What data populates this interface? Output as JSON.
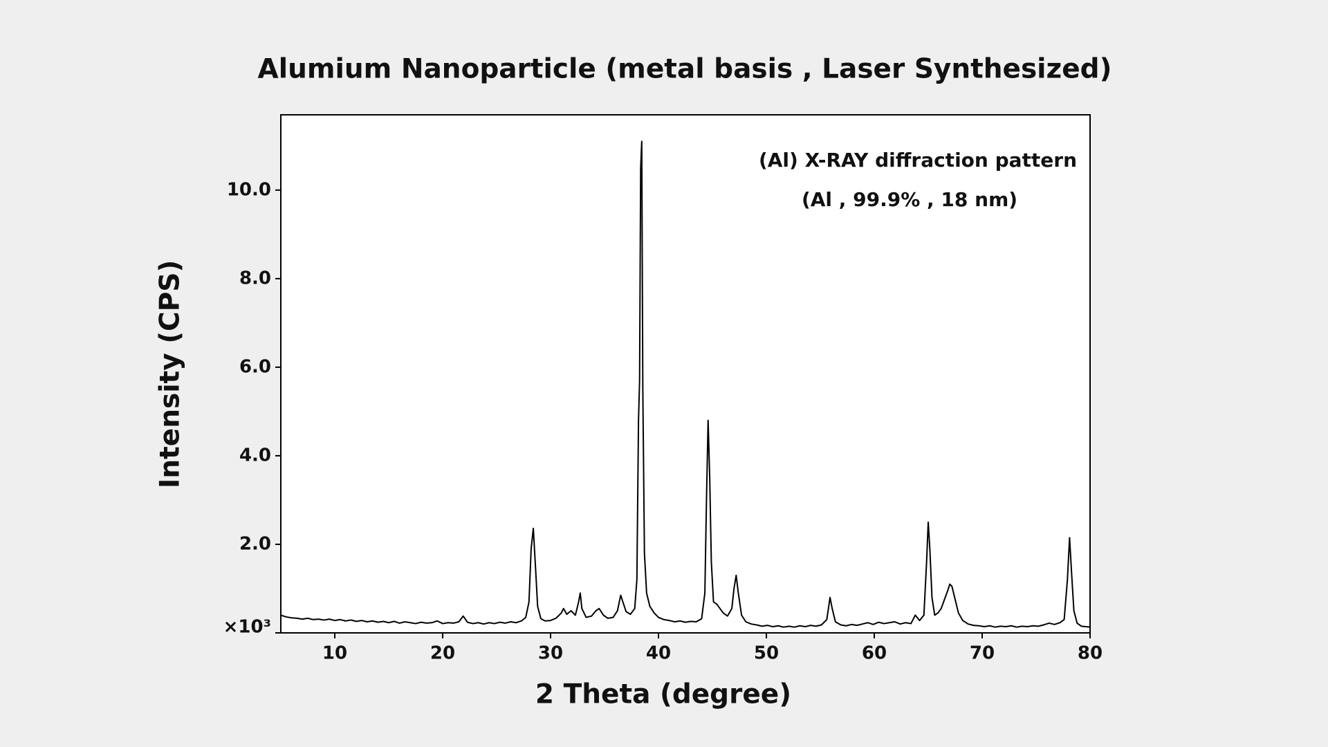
{
  "chart_data": {
    "type": "line",
    "title": "Alumium Nanoparticle (metal basis , Laser Synthesized)",
    "annotations": [
      "(Al) X-RAY diffraction pattern",
      "(Al , 99.9% , 18 nm)"
    ],
    "x_label": "2 Theta (degree)",
    "y_label": "Intensity (CPS)",
    "color": "#000000",
    "xlim": [
      5,
      80
    ],
    "ylim": [
      0,
      11.7
    ],
    "xticks": [
      10,
      20,
      30,
      40,
      50,
      60,
      70,
      80
    ],
    "yticks": [
      {
        "value": 0,
        "label": "×10³"
      },
      {
        "value": 2,
        "label": "2.0"
      },
      {
        "value": 4,
        "label": "4.0"
      },
      {
        "value": 6,
        "label": "6.0"
      },
      {
        "value": 8,
        "label": "8.0"
      },
      {
        "value": 10,
        "label": "10.0"
      }
    ],
    "x": [
      5.0,
      5.5,
      6.0,
      6.5,
      7.0,
      7.5,
      8.0,
      8.5,
      9.0,
      9.5,
      10.0,
      10.5,
      11.0,
      11.5,
      12.0,
      12.5,
      13.0,
      13.5,
      14.0,
      14.5,
      15.0,
      15.5,
      16.0,
      16.5,
      17.0,
      17.5,
      18.0,
      18.5,
      19.0,
      19.5,
      20.0,
      20.5,
      21.0,
      21.5,
      21.9,
      22.3,
      22.8,
      23.3,
      23.8,
      24.3,
      24.8,
      25.3,
      25.8,
      26.3,
      26.8,
      27.3,
      27.7,
      28.0,
      28.2,
      28.4,
      28.6,
      28.8,
      29.1,
      29.5,
      30.0,
      30.5,
      31.0,
      31.2,
      31.5,
      31.9,
      32.3,
      32.6,
      32.75,
      32.9,
      33.3,
      33.8,
      34.2,
      34.5,
      34.9,
      35.3,
      35.8,
      36.2,
      36.5,
      36.7,
      37.0,
      37.4,
      37.8,
      38.0,
      38.15,
      38.25,
      38.35,
      38.45,
      38.55,
      38.7,
      38.9,
      39.2,
      39.6,
      40.0,
      40.5,
      41.0,
      41.5,
      42.0,
      42.5,
      43.0,
      43.5,
      44.0,
      44.3,
      44.45,
      44.6,
      44.75,
      44.9,
      45.1,
      45.4,
      45.7,
      46.0,
      46.4,
      46.8,
      47.0,
      47.2,
      47.4,
      47.7,
      48.1,
      48.6,
      49.1,
      49.6,
      50.1,
      50.6,
      51.1,
      51.6,
      52.1,
      52.6,
      53.1,
      53.6,
      54.1,
      54.6,
      55.1,
      55.6,
      55.9,
      56.1,
      56.4,
      56.9,
      57.4,
      57.9,
      58.4,
      58.9,
      59.4,
      59.9,
      60.4,
      60.9,
      61.4,
      61.9,
      62.4,
      62.9,
      63.4,
      63.8,
      64.2,
      64.6,
      64.85,
      65.0,
      65.15,
      65.35,
      65.6,
      65.9,
      66.2,
      66.5,
      66.8,
      67.0,
      67.2,
      67.5,
      67.8,
      68.2,
      68.7,
      69.2,
      69.7,
      70.2,
      70.7,
      71.2,
      71.7,
      72.2,
      72.7,
      73.2,
      73.7,
      74.2,
      74.7,
      75.2,
      75.7,
      76.2,
      76.7,
      77.2,
      77.6,
      77.9,
      78.1,
      78.3,
      78.5,
      78.8,
      79.2,
      79.6,
      80.0
    ],
    "values": [
      0.4,
      0.36,
      0.34,
      0.33,
      0.31,
      0.33,
      0.3,
      0.31,
      0.29,
      0.31,
      0.28,
      0.3,
      0.27,
      0.29,
      0.26,
      0.28,
      0.25,
      0.27,
      0.24,
      0.26,
      0.23,
      0.26,
      0.22,
      0.25,
      0.23,
      0.21,
      0.24,
      0.22,
      0.23,
      0.27,
      0.21,
      0.23,
      0.22,
      0.25,
      0.38,
      0.24,
      0.21,
      0.23,
      0.2,
      0.23,
      0.21,
      0.24,
      0.22,
      0.25,
      0.23,
      0.27,
      0.35,
      0.7,
      1.9,
      2.36,
      1.5,
      0.6,
      0.32,
      0.27,
      0.28,
      0.33,
      0.45,
      0.55,
      0.42,
      0.5,
      0.4,
      0.7,
      0.9,
      0.55,
      0.35,
      0.38,
      0.5,
      0.55,
      0.4,
      0.33,
      0.35,
      0.5,
      0.85,
      0.7,
      0.48,
      0.42,
      0.55,
      1.2,
      4.8,
      5.7,
      10.5,
      11.1,
      5.5,
      1.8,
      0.9,
      0.6,
      0.45,
      0.35,
      0.3,
      0.28,
      0.25,
      0.27,
      0.24,
      0.26,
      0.25,
      0.32,
      0.9,
      3.0,
      4.8,
      3.5,
      1.6,
      0.7,
      0.65,
      0.55,
      0.45,
      0.38,
      0.55,
      1.0,
      1.3,
      0.9,
      0.4,
      0.25,
      0.2,
      0.18,
      0.15,
      0.17,
      0.14,
      0.16,
      0.13,
      0.15,
      0.13,
      0.16,
      0.14,
      0.17,
      0.15,
      0.18,
      0.3,
      0.8,
      0.55,
      0.25,
      0.18,
      0.16,
      0.19,
      0.17,
      0.2,
      0.23,
      0.19,
      0.24,
      0.21,
      0.23,
      0.25,
      0.2,
      0.23,
      0.21,
      0.4,
      0.28,
      0.4,
      1.6,
      2.5,
      1.9,
      0.8,
      0.4,
      0.45,
      0.55,
      0.75,
      0.95,
      1.1,
      1.05,
      0.75,
      0.45,
      0.28,
      0.2,
      0.17,
      0.16,
      0.14,
      0.16,
      0.13,
      0.15,
      0.14,
      0.16,
      0.13,
      0.15,
      0.14,
      0.16,
      0.15,
      0.18,
      0.22,
      0.19,
      0.23,
      0.3,
      1.2,
      2.15,
      1.3,
      0.5,
      0.22,
      0.15,
      0.14,
      0.13
    ]
  }
}
